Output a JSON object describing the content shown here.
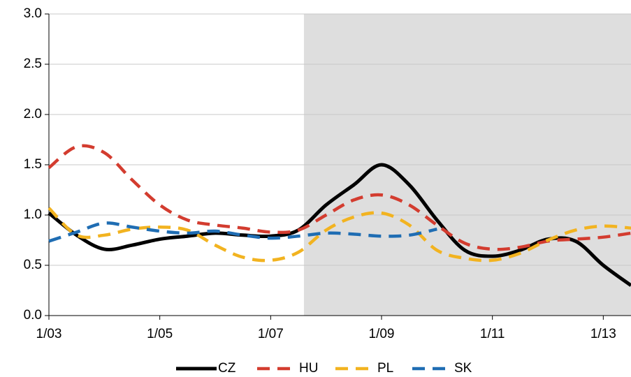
{
  "chart_data": {
    "type": "line",
    "categories": [
      "1/03",
      null,
      null,
      null,
      "1/05",
      null,
      null,
      null,
      "1/07",
      null,
      null,
      null,
      "1/09",
      null,
      null,
      null,
      "1/11",
      null,
      null,
      null,
      "1/13",
      null
    ],
    "series": [
      {
        "name": "CZ",
        "color": "#000000",
        "line_style": "solid",
        "values": [
          1.02,
          0.8,
          0.66,
          0.7,
          0.76,
          0.79,
          0.82,
          0.8,
          0.79,
          0.85,
          1.1,
          1.3,
          1.5,
          1.3,
          0.95,
          0.65,
          0.59,
          0.65,
          0.76,
          0.74,
          0.5,
          0.3
        ]
      },
      {
        "name": "HU",
        "color": "#d33c2f",
        "line_style": "dashed",
        "values": [
          1.47,
          1.68,
          1.62,
          1.35,
          1.1,
          0.95,
          0.9,
          0.87,
          0.83,
          0.85,
          1.0,
          1.15,
          1.2,
          1.1,
          0.9,
          0.72,
          0.66,
          0.68,
          0.74,
          0.76,
          0.78,
          0.82
        ]
      },
      {
        "name": "PL",
        "color": "#f2b320",
        "line_style": "dashed",
        "values": [
          1.07,
          0.8,
          0.8,
          0.86,
          0.88,
          0.85,
          0.7,
          0.58,
          0.55,
          0.63,
          0.85,
          0.98,
          1.02,
          0.9,
          0.65,
          0.57,
          0.55,
          0.62,
          0.75,
          0.85,
          0.89,
          0.87
        ]
      },
      {
        "name": "SK",
        "color": "#1f6db3",
        "line_style": "dashed",
        "values": [
          0.74,
          0.83,
          0.92,
          0.88,
          0.84,
          0.82,
          0.84,
          0.8,
          0.77,
          0.79,
          0.82,
          0.81,
          0.79,
          0.8,
          0.86,
          null,
          null,
          null,
          null,
          null,
          null,
          null
        ]
      }
    ],
    "ylim": [
      0,
      3
    ],
    "yticks": [
      {
        "value": 0,
        "label": "0.0"
      },
      {
        "value": 0.5,
        "label": "0.5"
      },
      {
        "value": 1,
        "label": "1.0"
      },
      {
        "value": 1.5,
        "label": "1.5"
      },
      {
        "value": 2,
        "label": "2.0"
      },
      {
        "value": 2.5,
        "label": "2.5"
      },
      {
        "value": 3,
        "label": "3.0"
      }
    ],
    "grid": true,
    "shaded_region": {
      "x_start": 9.2,
      "color": "#dedede"
    },
    "legend": "bottom"
  }
}
